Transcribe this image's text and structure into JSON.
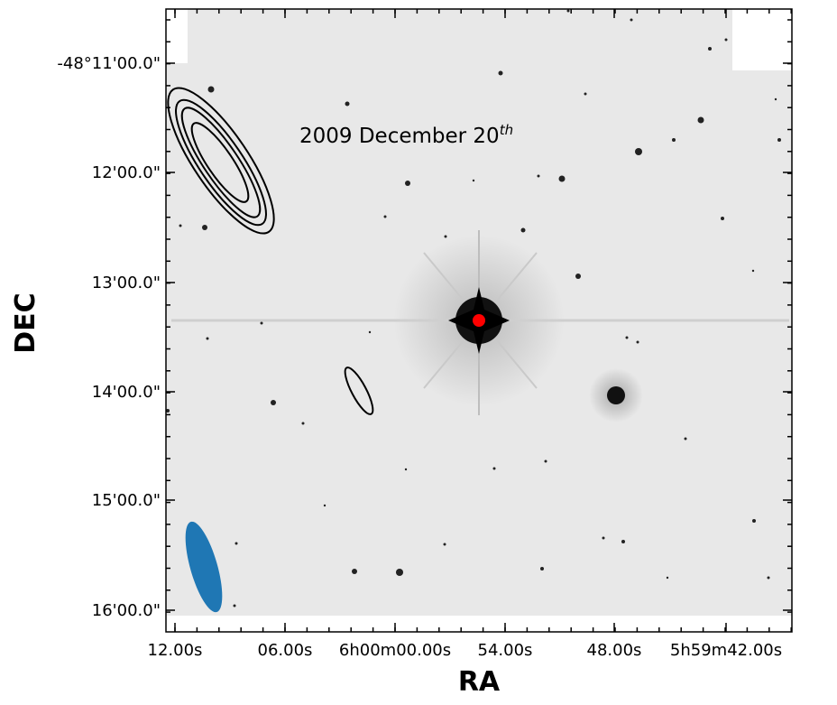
{
  "figure": {
    "annotation": {
      "text": "2009 December 20",
      "superscript": "th"
    },
    "xlabel": "RA",
    "ylabel": "DEC",
    "ra_ticks": [
      "12.00s",
      "06.00s",
      "6h00m00.00s",
      "54.00s",
      "48.00s",
      "5h59m42.00s"
    ],
    "dec_ticks": [
      "-48°11'00.0\"",
      "12'00.0\"",
      "13'00.0\"",
      "14'00.0\"",
      "15'00.0\"",
      "16'00.0\""
    ],
    "colors": {
      "background": "#e8e8e8",
      "star": "#111111",
      "marker": "#ff0000",
      "beam": "#1f77b4",
      "contour": "#000000"
    }
  }
}
